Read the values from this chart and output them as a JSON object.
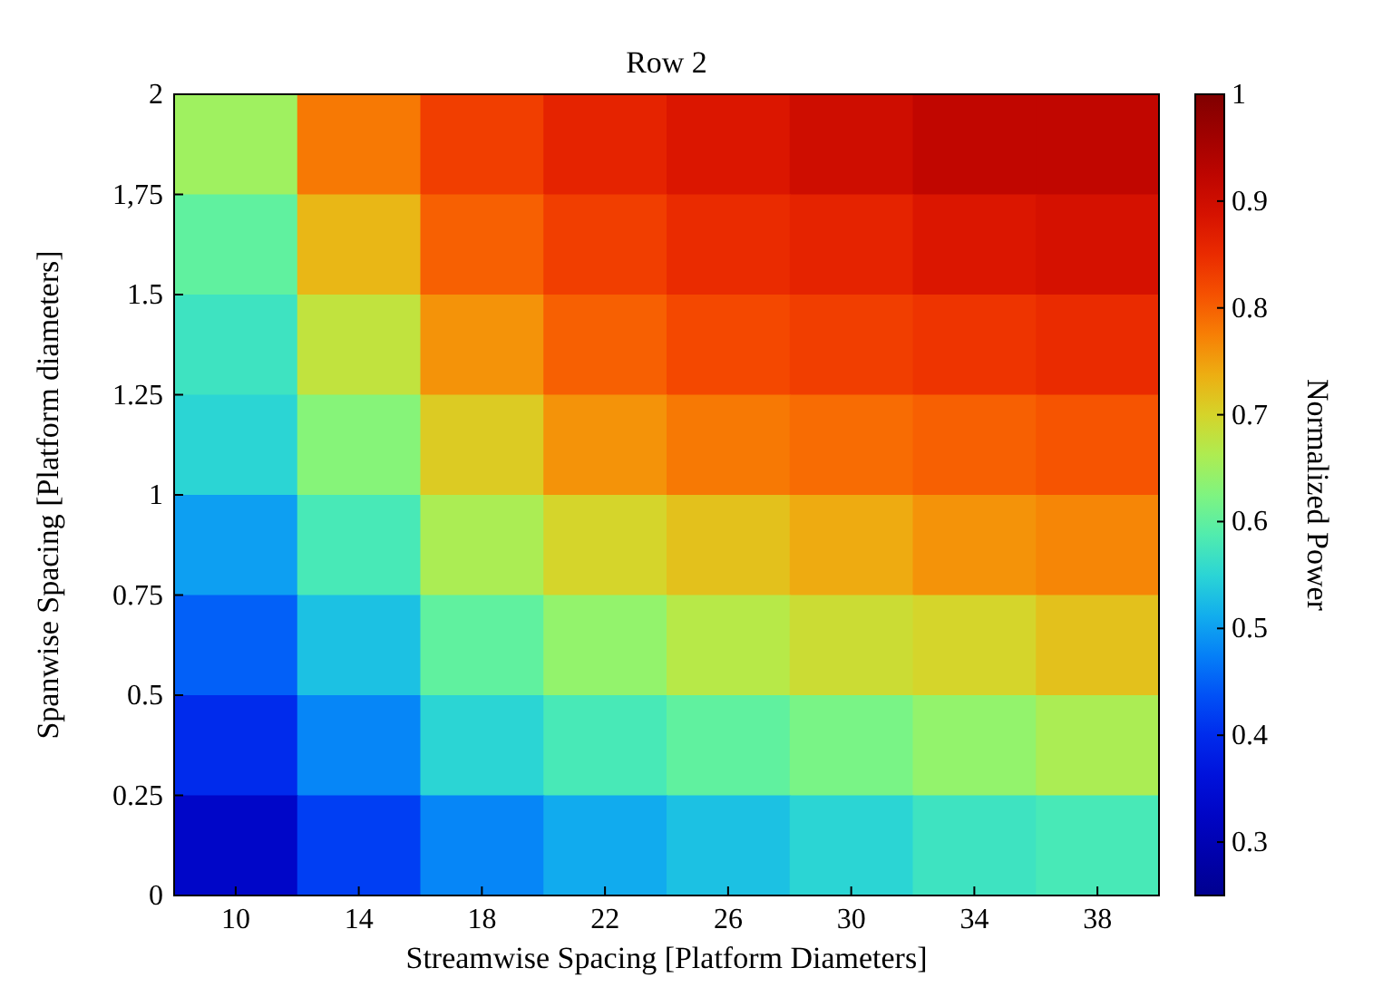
{
  "chart_data": {
    "type": "heatmap",
    "title": "Row 2",
    "xlabel": "Streamwise Spacing [Platform Diameters]",
    "ylabel": "Spanwise Spacing [Platform diameters]",
    "clabel": "Normalized Power",
    "xlim": [
      8,
      40
    ],
    "xticks": [
      10,
      14,
      18,
      22,
      26,
      30,
      34,
      38
    ],
    "ylim": [
      0,
      2
    ],
    "yticks": [
      0,
      0.25,
      0.5,
      0.75,
      1,
      1.25,
      1.5,
      {
        "value": 1.75,
        "label": "1,75"
      },
      2
    ],
    "clim": [
      0.25,
      1
    ],
    "cticks": [
      0.3,
      0.4,
      0.5,
      0.6,
      0.7,
      0.8,
      0.9,
      1
    ],
    "cells": [
      [
        0.65,
        0.78,
        0.83,
        0.86,
        0.88,
        0.9,
        0.92,
        0.92
      ],
      [
        0.6,
        0.73,
        0.8,
        0.83,
        0.85,
        0.86,
        0.88,
        0.89
      ],
      [
        0.57,
        0.68,
        0.76,
        0.8,
        0.82,
        0.83,
        0.84,
        0.85
      ],
      [
        0.55,
        0.63,
        0.71,
        0.76,
        0.78,
        0.79,
        0.8,
        0.81
      ],
      [
        0.5,
        0.58,
        0.66,
        0.7,
        0.72,
        0.74,
        0.76,
        0.77
      ],
      [
        0.45,
        0.53,
        0.6,
        0.64,
        0.67,
        0.69,
        0.7,
        0.72
      ],
      [
        0.4,
        0.48,
        0.55,
        0.58,
        0.6,
        0.62,
        0.64,
        0.66
      ],
      [
        0.33,
        0.42,
        0.48,
        0.51,
        0.53,
        0.55,
        0.57,
        0.58
      ]
    ]
  }
}
